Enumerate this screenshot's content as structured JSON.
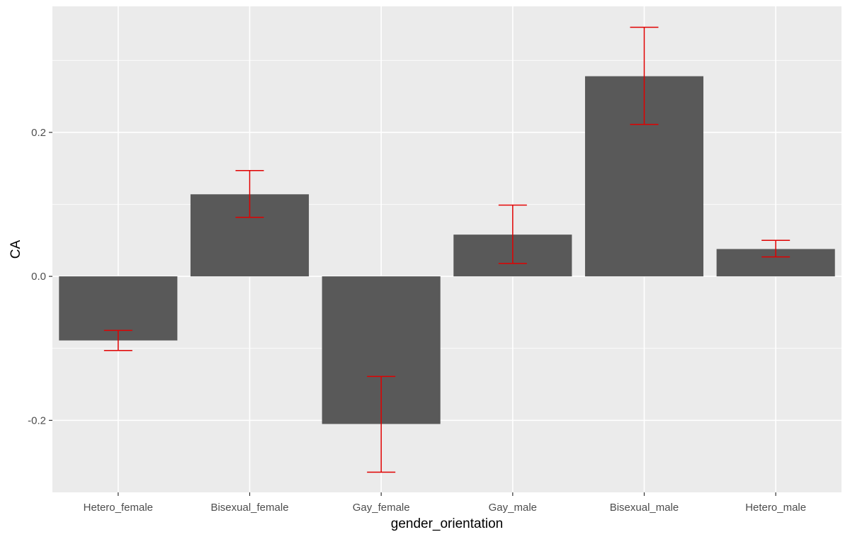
{
  "chart_data": {
    "type": "bar",
    "xlabel": "gender_orientation",
    "ylabel": "CA",
    "categories": [
      "Hetero_female",
      "Bisexual_female",
      "Gay_female",
      "Gay_male",
      "Bisexual_male",
      "Hetero_male"
    ],
    "values": [
      -0.089,
      0.114,
      -0.205,
      0.058,
      0.278,
      0.038
    ],
    "error_lower": [
      -0.103,
      0.082,
      -0.272,
      0.018,
      0.211,
      0.027
    ],
    "error_upper": [
      -0.075,
      0.147,
      -0.139,
      0.099,
      0.346,
      0.05
    ],
    "ylim": [
      -0.3,
      0.375
    ],
    "yticks": [
      -0.2,
      0.0,
      0.2
    ],
    "ytick_labels": [
      "-0.2",
      "0.0",
      "0.2"
    ],
    "grid": true,
    "colors": {
      "panel_background": "#ebebeb",
      "grid": "#ffffff",
      "bar": "#595959",
      "error_bar": "#e00000"
    }
  }
}
